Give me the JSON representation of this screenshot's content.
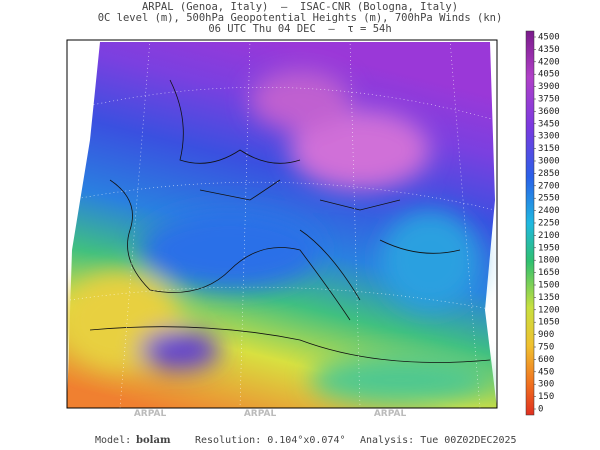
{
  "header": {
    "lines": [
      "ARPAL (Genoa, Italy)  —  ISAC-CNR (Bologna, Italy)",
      "0C level (m), 500hPa Geopotential Heights (m), 700hPa Winds (kn)",
      "06 UTC Thu 04 DEC  —  τ = 54h"
    ]
  },
  "colorbar": {
    "labels": [
      4500,
      4350,
      4200,
      4050,
      3900,
      3750,
      3600,
      3450,
      3300,
      3150,
      3000,
      2850,
      2700,
      2550,
      2400,
      2250,
      2100,
      1950,
      1800,
      1650,
      1500,
      1350,
      1200,
      1050,
      900,
      750,
      600,
      450,
      300,
      150,
      0
    ]
  },
  "watermark": "ARPAL",
  "footer": {
    "model_label": "Model:",
    "model": "bolam",
    "resolution": "Resolution: 0.104°x0.074°",
    "analysis": "Analysis: Tue 00Z02DEC2025"
  }
}
